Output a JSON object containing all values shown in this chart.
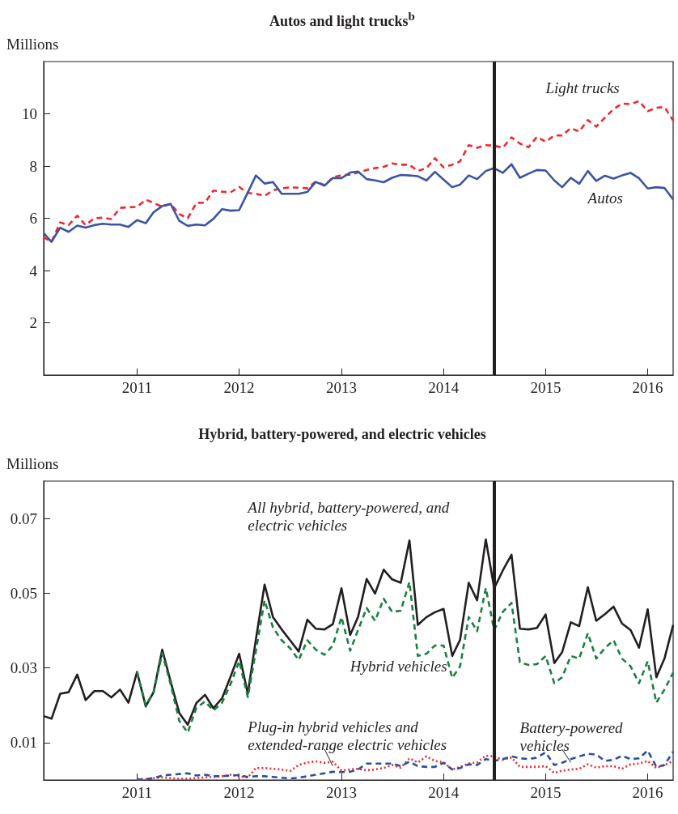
{
  "chart_data": [
    {
      "type": "line",
      "title": "Autos and light trucks$^{b}$",
      "ylabel": "Millions",
      "x": [
        "2010-02",
        "2010-03",
        "2010-04",
        "2010-05",
        "2010-06",
        "2010-07",
        "2010-08",
        "2010-09",
        "2010-10",
        "2010-11",
        "2010-12",
        "2011-01",
        "2011-02",
        "2011-03",
        "2011-04",
        "2011-05",
        "2011-06",
        "2011-07",
        "2011-08",
        "2011-09",
        "2011-10",
        "2011-11",
        "2011-12",
        "2012-01",
        "2012-02",
        "2012-03",
        "2012-04",
        "2012-05",
        "2012-06",
        "2012-07",
        "2012-08",
        "2012-09",
        "2012-10",
        "2012-11",
        "2012-12",
        "2013-01",
        "2013-02",
        "2013-03",
        "2013-04",
        "2013-05",
        "2013-06",
        "2013-07",
        "2013-08",
        "2013-09",
        "2013-10",
        "2013-11",
        "2013-12",
        "2014-01",
        "2014-02",
        "2014-03",
        "2014-04",
        "2014-05",
        "2014-06",
        "2014-07",
        "2014-08",
        "2014-09",
        "2014-10",
        "2014-11",
        "2014-12",
        "2015-01",
        "2015-02",
        "2015-03",
        "2015-04",
        "2015-05",
        "2015-06",
        "2015-07",
        "2015-08",
        "2015-09",
        "2015-10",
        "2015-11",
        "2015-12",
        "2016-01",
        "2016-02",
        "2016-03",
        "2016-04"
      ],
      "series": [
        {
          "name": "Light trucks",
          "color": "#ee2a2f",
          "line_style": "dashed",
          "values": [
            5.27,
            5.1,
            5.84,
            5.74,
            6.1,
            5.74,
            6.0,
            6.02,
            5.97,
            6.4,
            6.42,
            6.44,
            6.71,
            6.59,
            6.44,
            6.55,
            6.16,
            6.0,
            6.59,
            6.6,
            7.06,
            7.02,
            6.99,
            7.2,
            6.97,
            6.94,
            6.86,
            7.07,
            7.15,
            7.18,
            7.17,
            7.15,
            7.41,
            7.27,
            7.56,
            7.65,
            7.67,
            7.75,
            7.85,
            7.92,
            7.97,
            8.1,
            8.05,
            8.05,
            7.81,
            7.92,
            8.3,
            7.95,
            8.05,
            8.18,
            8.8,
            8.7,
            8.8,
            8.78,
            8.7,
            9.1,
            8.86,
            8.72,
            9.12,
            8.93,
            9.17,
            9.17,
            9.45,
            9.32,
            9.76,
            9.51,
            9.85,
            10.18,
            10.39,
            10.37,
            10.49,
            10.1,
            10.23,
            10.26,
            9.74
          ]
        },
        {
          "name": "Autos",
          "color": "#3a55a4",
          "line_style": "solid",
          "values": [
            5.43,
            5.1,
            5.64,
            5.48,
            5.72,
            5.64,
            5.74,
            5.79,
            5.76,
            5.76,
            5.67,
            5.93,
            5.81,
            6.23,
            6.47,
            6.55,
            5.9,
            5.71,
            5.76,
            5.73,
            5.98,
            6.35,
            6.29,
            6.31,
            6.99,
            7.64,
            7.33,
            7.39,
            6.94,
            6.94,
            6.94,
            7.01,
            7.39,
            7.25,
            7.54,
            7.54,
            7.75,
            7.79,
            7.5,
            7.45,
            7.38,
            7.55,
            7.66,
            7.64,
            7.61,
            7.45,
            7.78,
            7.48,
            7.19,
            7.29,
            7.64,
            7.5,
            7.81,
            7.92,
            7.74,
            8.07,
            7.55,
            7.71,
            7.85,
            7.83,
            7.45,
            7.19,
            7.55,
            7.32,
            7.81,
            7.43,
            7.63,
            7.52,
            7.64,
            7.74,
            7.53,
            7.14,
            7.19,
            7.16,
            6.72
          ]
        }
      ],
      "xlim": [
        "2010-02",
        "2016-04"
      ],
      "xticks": [
        "2011",
        "2012",
        "2013",
        "2014",
        "2015",
        "2016"
      ],
      "ylim": [
        0,
        12
      ],
      "yticks": [
        2,
        4,
        6,
        8,
        10
      ],
      "ref_lines": [
        {
          "axis": "x",
          "value": "2014-07",
          "color": "#231f20"
        }
      ]
    },
    {
      "type": "line",
      "title": "Hybrid, battery-powered, and electric vehicles",
      "ylabel": "Millions",
      "x": [
        "2010-02",
        "2010-03",
        "2010-04",
        "2010-05",
        "2010-06",
        "2010-07",
        "2010-08",
        "2010-09",
        "2010-10",
        "2010-11",
        "2010-12",
        "2011-01",
        "2011-02",
        "2011-03",
        "2011-04",
        "2011-05",
        "2011-06",
        "2011-07",
        "2011-08",
        "2011-09",
        "2011-10",
        "2011-11",
        "2011-12",
        "2012-01",
        "2012-02",
        "2012-03",
        "2012-04",
        "2012-05",
        "2012-06",
        "2012-07",
        "2012-08",
        "2012-09",
        "2012-10",
        "2012-11",
        "2012-12",
        "2013-01",
        "2013-02",
        "2013-03",
        "2013-04",
        "2013-05",
        "2013-06",
        "2013-07",
        "2013-08",
        "2013-09",
        "2013-10",
        "2013-11",
        "2013-12",
        "2014-01",
        "2014-02",
        "2014-03",
        "2014-04",
        "2014-05",
        "2014-06",
        "2014-07",
        "2014-08",
        "2014-09",
        "2014-10",
        "2014-11",
        "2014-12",
        "2015-01",
        "2015-02",
        "2015-03",
        "2015-04",
        "2015-05",
        "2015-06",
        "2015-07",
        "2015-08",
        "2015-09",
        "2015-10",
        "2015-11",
        "2015-12",
        "2016-01",
        "2016-02",
        "2016-03",
        "2016-04"
      ],
      "series": [
        {
          "name": "All hybrid, battery-powered, and electric vehicles",
          "color": "#231f20",
          "line_style": "solid",
          "values": [
            0.0171,
            0.0164,
            0.0231,
            0.0235,
            0.0282,
            0.0214,
            0.0238,
            0.0238,
            0.0221,
            0.0242,
            0.0207,
            0.0289,
            0.0197,
            0.0235,
            0.0349,
            0.0263,
            0.0179,
            0.0148,
            0.0206,
            0.0228,
            0.0192,
            0.0219,
            0.0276,
            0.0338,
            0.0231,
            0.0377,
            0.0523,
            0.0436,
            0.0403,
            0.0374,
            0.0344,
            0.0429,
            0.0405,
            0.0403,
            0.0417,
            0.0513,
            0.0388,
            0.0436,
            0.0538,
            0.0499,
            0.0563,
            0.0537,
            0.0528,
            0.0641,
            0.0415,
            0.0436,
            0.0449,
            0.0458,
            0.0332,
            0.0375,
            0.0528,
            0.0481,
            0.0644,
            0.0513,
            0.0561,
            0.0603,
            0.0405,
            0.0403,
            0.0407,
            0.0443,
            0.0313,
            0.0342,
            0.0422,
            0.0412,
            0.0516,
            0.0426,
            0.0444,
            0.0464,
            0.0419,
            0.0401,
            0.0354,
            0.0457,
            0.0275,
            0.0325,
            0.0415
          ]
        },
        {
          "name": "Hybrid vehicles",
          "color": "#1b8040",
          "line_style": "dashed",
          "values": [
            null,
            null,
            null,
            null,
            null,
            null,
            null,
            null,
            null,
            null,
            null,
            0.0289,
            0.02,
            0.0235,
            0.0339,
            0.0256,
            0.0158,
            0.0127,
            0.0193,
            0.021,
            0.0186,
            0.0207,
            0.0256,
            0.0318,
            0.0222,
            0.0346,
            0.0481,
            0.0408,
            0.0374,
            0.0353,
            0.0321,
            0.0374,
            0.0349,
            0.0335,
            0.036,
            0.0436,
            0.0346,
            0.0401,
            0.046,
            0.0426,
            0.0485,
            0.045,
            0.0453,
            0.053,
            0.0332,
            0.0338,
            0.036,
            0.036,
            0.0273,
            0.0304,
            0.0436,
            0.0398,
            0.0514,
            0.0401,
            0.045,
            0.0474,
            0.0315,
            0.0308,
            0.031,
            0.0332,
            0.0259,
            0.0275,
            0.0332,
            0.0325,
            0.0393,
            0.0325,
            0.0353,
            0.0374,
            0.0325,
            0.0304,
            0.0259,
            0.0318,
            0.0207,
            0.0242,
            0.0287
          ]
        },
        {
          "name": "Plug-in hybrid vehicles and extended-range electric vehicles",
          "color": "#ee2a2f",
          "line_style": "dotted",
          "values": [
            null,
            null,
            null,
            null,
            null,
            null,
            null,
            null,
            null,
            null,
            null,
            0.0003,
            0.0002,
            0.0005,
            0.0007,
            0.0005,
            0.0003,
            0.0003,
            0.0005,
            0.0007,
            0.0008,
            0.001,
            0.0014,
            0.0009,
            0.0007,
            0.0032,
            0.0032,
            0.003,
            0.0028,
            0.0024,
            0.004,
            0.0047,
            0.005,
            0.0046,
            0.0049,
            0.0025,
            0.0028,
            0.003,
            0.0026,
            0.0028,
            0.0032,
            0.004,
            0.0033,
            0.0058,
            0.0047,
            0.0063,
            0.0051,
            0.0047,
            0.0028,
            0.0035,
            0.0044,
            0.0047,
            0.0065,
            0.0063,
            0.0054,
            0.006,
            0.0035,
            0.0035,
            0.0035,
            0.0037,
            0.0019,
            0.0025,
            0.0028,
            0.003,
            0.0042,
            0.0033,
            0.0037,
            0.0037,
            0.003,
            0.0042,
            0.0044,
            0.0051,
            0.0032,
            0.004,
            0.0051
          ]
        },
        {
          "name": "Battery-powered vehicles",
          "color": "#2e4fa0",
          "line_style": "dashed",
          "values": [
            null,
            null,
            null,
            null,
            null,
            null,
            null,
            null,
            null,
            null,
            null,
            0.0001,
            0.0002,
            0.0005,
            0.0012,
            0.0014,
            0.0016,
            0.0018,
            0.0012,
            0.0014,
            0.001,
            0.001,
            0.0012,
            0.0013,
            0.0008,
            0.001,
            0.001,
            0.0008,
            0.0006,
            0.0004,
            0.0006,
            0.001,
            0.0014,
            0.0018,
            0.0022,
            0.0021,
            0.0022,
            0.0028,
            0.0044,
            0.0044,
            0.0044,
            0.0044,
            0.0037,
            0.0049,
            0.0037,
            0.0035,
            0.0035,
            0.0046,
            0.0028,
            0.0032,
            0.0042,
            0.004,
            0.0056,
            0.0051,
            0.0056,
            0.0063,
            0.0058,
            0.0056,
            0.006,
            0.0074,
            0.004,
            0.0046,
            0.0056,
            0.0063,
            0.007,
            0.0068,
            0.0051,
            0.0054,
            0.0065,
            0.0056,
            0.0058,
            0.0079,
            0.0035,
            0.004,
            0.0076
          ]
        }
      ],
      "xlim": [
        "2010-02",
        "2016-04"
      ],
      "xticks": [
        "2011",
        "2012",
        "2013",
        "2014",
        "2015",
        "2016"
      ],
      "ylim": [
        0,
        0.08
      ],
      "yticks": [
        0.01,
        0.03,
        0.05,
        0.07
      ],
      "ref_lines": [
        {
          "axis": "x",
          "value": "2014-07",
          "color": "#231f20"
        }
      ]
    }
  ]
}
